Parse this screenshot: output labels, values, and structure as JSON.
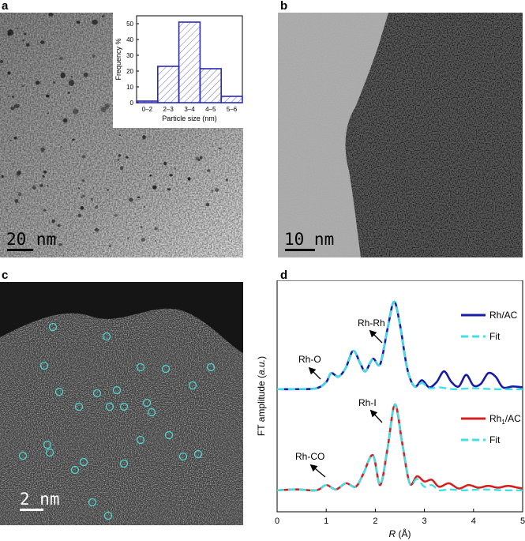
{
  "panels": {
    "a": {
      "letter": "a",
      "scale_label": "20 nm"
    },
    "b": {
      "letter": "b",
      "scale_label": "10 nm"
    },
    "c": {
      "letter": "c",
      "scale_label": "2 nm",
      "marker_color": "#4fd6d0"
    },
    "d": {
      "letter": "d"
    }
  },
  "chart_data": [
    {
      "type": "bar",
      "panel": "a-inset",
      "categories": [
        "0–2",
        "2–3",
        "3–4",
        "4–5",
        "5–6"
      ],
      "values": [
        1,
        23,
        51,
        21.5,
        4
      ],
      "xlabel": "Particle size (nm)",
      "ylabel": "Frequency %",
      "ylim": [
        0,
        55
      ],
      "yticks": [
        0,
        10,
        20,
        30,
        40,
        50
      ],
      "bar_color": "#2a2ab8",
      "hatch": true
    },
    {
      "type": "line",
      "panel": "d",
      "xlabel": "R (Å)",
      "ylabel": "FT amplitude (a.u.)",
      "xlim": [
        0,
        5
      ],
      "xticks": [
        0,
        1,
        2,
        3,
        4,
        5
      ],
      "series": [
        {
          "name": "Rh/AC",
          "color": "#1a1aa8",
          "style": "solid",
          "group": "top",
          "x": [
            0,
            0.4,
            0.8,
            1.0,
            1.1,
            1.25,
            1.4,
            1.55,
            1.7,
            1.8,
            1.95,
            2.1,
            2.25,
            2.38,
            2.5,
            2.65,
            2.8,
            2.95,
            3.1,
            3.25,
            3.4,
            3.55,
            3.7,
            3.85,
            4.0,
            4.15,
            4.3,
            4.45,
            4.6,
            4.8,
            5.0
          ],
          "y": [
            0.02,
            0.02,
            0.03,
            0.1,
            0.2,
            0.16,
            0.26,
            0.45,
            0.3,
            0.22,
            0.36,
            0.3,
            0.7,
            1.0,
            0.75,
            0.25,
            0.05,
            0.12,
            0.04,
            0.1,
            0.22,
            0.1,
            0.05,
            0.18,
            0.06,
            0.08,
            0.2,
            0.16,
            0.04,
            0.05,
            0.04
          ]
        },
        {
          "name": "Fit",
          "color": "#3fe0e8",
          "style": "dashed",
          "group": "top",
          "x": [
            0,
            0.4,
            0.8,
            1.0,
            1.1,
            1.25,
            1.4,
            1.55,
            1.7,
            1.8,
            1.95,
            2.1,
            2.25,
            2.38,
            2.5,
            2.65,
            2.8,
            2.95,
            3.1,
            3.3,
            3.6,
            4.0,
            4.4,
            5.0
          ],
          "y": [
            0.02,
            0.02,
            0.03,
            0.1,
            0.2,
            0.16,
            0.26,
            0.45,
            0.3,
            0.22,
            0.36,
            0.3,
            0.7,
            1.0,
            0.75,
            0.25,
            0.05,
            0.09,
            0.03,
            0.04,
            0.02,
            0.03,
            0.02,
            0.02
          ]
        },
        {
          "name": "Rh₁/AC",
          "color": "#d42020",
          "style": "solid",
          "group": "bottom",
          "x": [
            0,
            0.4,
            0.8,
            1.0,
            1.2,
            1.4,
            1.6,
            1.75,
            1.95,
            2.1,
            2.25,
            2.4,
            2.55,
            2.7,
            2.85,
            3.0,
            3.15,
            3.3,
            3.5,
            3.7,
            3.9,
            4.1,
            4.3,
            4.5,
            4.7,
            4.9,
            5.0
          ],
          "y": [
            0.02,
            0.03,
            0.02,
            0.08,
            0.03,
            0.1,
            0.06,
            0.2,
            0.42,
            0.08,
            0.5,
            1.0,
            0.55,
            0.1,
            0.18,
            0.12,
            0.14,
            0.06,
            0.1,
            0.04,
            0.08,
            0.05,
            0.07,
            0.05,
            0.07,
            0.05,
            0.04
          ]
        },
        {
          "name": "Fit",
          "color": "#3fe0e8",
          "style": "dashed",
          "group": "bottom",
          "x": [
            0,
            0.4,
            0.8,
            1.0,
            1.2,
            1.4,
            1.6,
            1.75,
            1.95,
            2.1,
            2.25,
            2.4,
            2.55,
            2.7,
            2.85,
            3.0,
            3.15,
            3.3,
            3.5,
            3.8,
            4.2,
            4.6,
            5.0
          ],
          "y": [
            0.02,
            0.03,
            0.02,
            0.08,
            0.03,
            0.1,
            0.06,
            0.2,
            0.42,
            0.08,
            0.5,
            1.0,
            0.55,
            0.1,
            0.15,
            0.06,
            0.08,
            0.02,
            0.03,
            0.02,
            0.03,
            0.02,
            0.02
          ]
        }
      ],
      "annotations": [
        {
          "text": "Rh-Rh",
          "group": "top"
        },
        {
          "text": "Rh-O",
          "group": "top"
        },
        {
          "text": "Rh-I",
          "group": "bottom"
        },
        {
          "text": "Rh-CO",
          "group": "bottom"
        }
      ],
      "legend_position": "top-right"
    }
  ]
}
